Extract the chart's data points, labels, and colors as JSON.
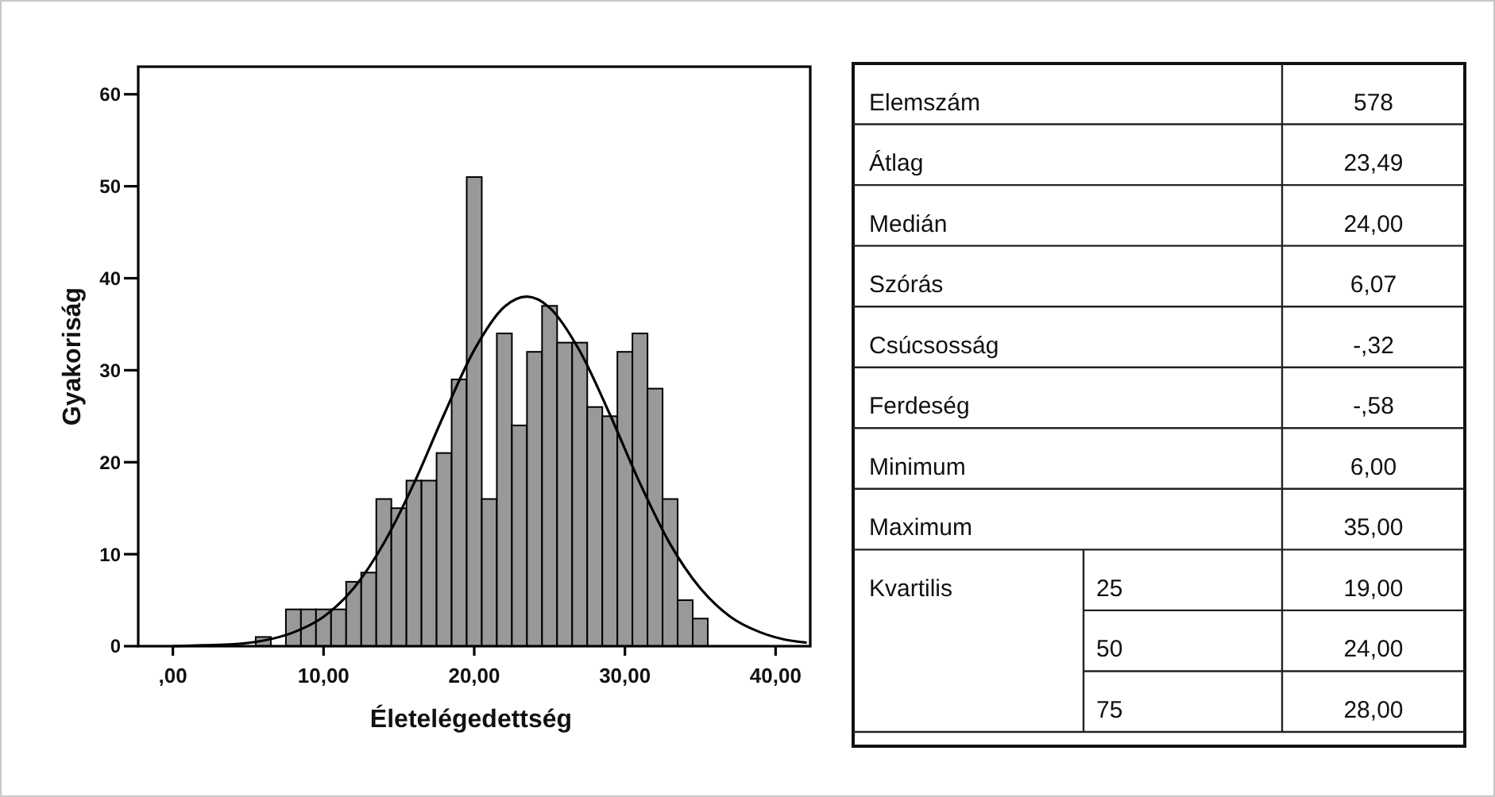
{
  "chart_data": [
    {
      "type": "histogram",
      "xlabel": "Életelégedettség",
      "ylabel": "Gyakoriság",
      "bins": [
        5.5,
        6.5,
        7.5,
        8.5,
        9.5,
        10.5,
        11.5,
        12.5,
        13.5,
        14.5,
        15.5,
        16.5,
        17.5,
        18.5,
        19.5,
        20.5,
        21.5,
        22.5,
        23.5,
        24.5,
        25.5,
        26.5,
        27.5,
        28.5,
        29.5,
        30.5,
        31.5,
        32.5,
        33.5,
        34.5,
        35.5
      ],
      "values": [
        1,
        0,
        4,
        4,
        4,
        4,
        7,
        8,
        16,
        15,
        18,
        18,
        21,
        29,
        51,
        16,
        34,
        24,
        32,
        37,
        33,
        33,
        26,
        25,
        32,
        34,
        28,
        16,
        5,
        3
      ],
      "color": "#999999",
      "series": [
        {
          "type": "line",
          "x": [
            0,
            2,
            4,
            6,
            8,
            10,
            12,
            14,
            16,
            18,
            20,
            22,
            23.5,
            25,
            27,
            29,
            31,
            33,
            35,
            37,
            39,
            41,
            42
          ],
          "values": [
            0,
            0.1,
            0.2,
            0.6,
            1.5,
            3.2,
            6.3,
            11.2,
            17.7,
            25.2,
            32.2,
            36.9,
            38,
            36.8,
            32.1,
            25.2,
            17.7,
            11.1,
            6.3,
            3.2,
            1.5,
            0.6,
            0.4
          ],
          "color": "#000000"
        }
      ],
      "xlim": [
        -2.3,
        42.3
      ],
      "xticks": [
        {
          "value": 0,
          "label": ",00"
        },
        {
          "value": 10,
          "label": "10,00"
        },
        {
          "value": 20,
          "label": "20,00"
        },
        {
          "value": 30,
          "label": "30,00"
        },
        {
          "value": 40,
          "label": "40,00"
        }
      ],
      "ylim": [
        0,
        63
      ],
      "yticks": [
        0,
        10,
        20,
        30,
        40,
        50,
        60
      ]
    },
    {
      "type": "other",
      "y_categories": [
        "Elemszám",
        "Átlag",
        "Medián",
        "Szórás",
        "Csúcsosság",
        "Ferdeség",
        "Minimum",
        "Maximum",
        "Kvartilis",
        null,
        null
      ],
      "y2_categories": [
        null,
        null,
        null,
        null,
        null,
        null,
        null,
        null,
        "25",
        "50",
        "75"
      ],
      "value_labels": [
        "578",
        "23,49",
        "24,00",
        "6,07",
        "-,32",
        "-,58",
        "6,00",
        "35,00",
        "19,00",
        "24,00",
        "28,00"
      ]
    }
  ]
}
